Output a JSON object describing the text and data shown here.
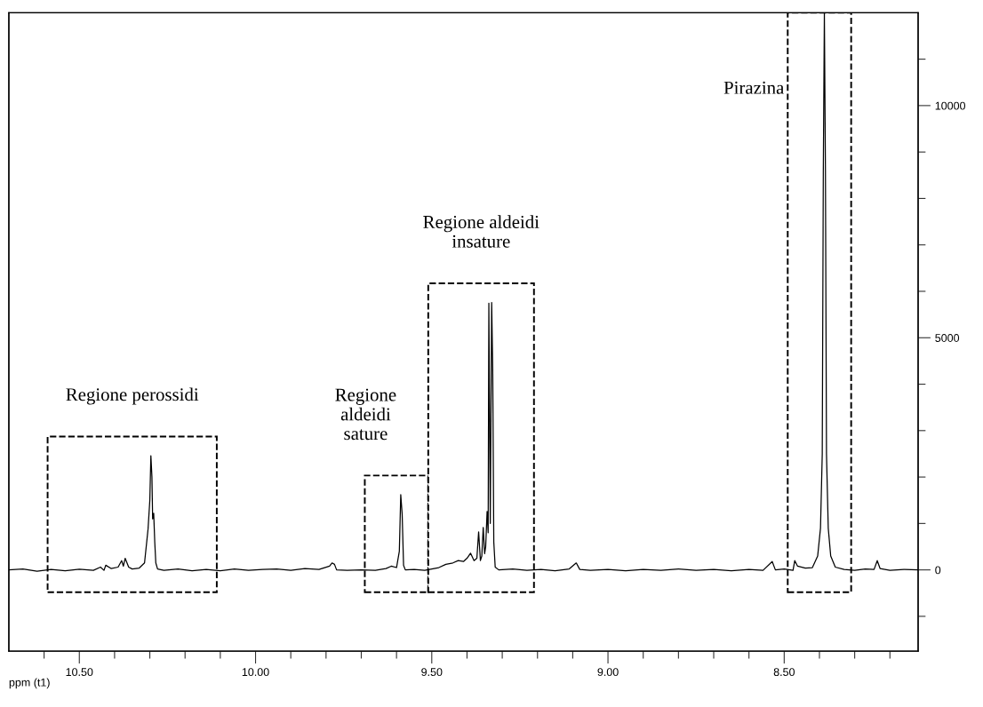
{
  "chart_data": {
    "type": "line",
    "xlabel": "ppm (t1)",
    "xlim": [
      10.7,
      8.12
    ],
    "xticks": [
      {
        "value": 10.6,
        "label": null
      },
      {
        "value": 10.5,
        "label": "10.50"
      },
      {
        "value": 10.4,
        "label": null
      },
      {
        "value": 10.3,
        "label": null
      },
      {
        "value": 10.2,
        "label": null
      },
      {
        "value": 10.1,
        "label": null
      },
      {
        "value": 10.0,
        "label": "10.00"
      },
      {
        "value": 9.9,
        "label": null
      },
      {
        "value": 9.8,
        "label": null
      },
      {
        "value": 9.7,
        "label": null
      },
      {
        "value": 9.6,
        "label": null
      },
      {
        "value": 9.5,
        "label": "9.50"
      },
      {
        "value": 9.4,
        "label": null
      },
      {
        "value": 9.3,
        "label": null
      },
      {
        "value": 9.2,
        "label": null
      },
      {
        "value": 9.1,
        "label": null
      },
      {
        "value": 9.0,
        "label": "9.00"
      },
      {
        "value": 8.9,
        "label": null
      },
      {
        "value": 8.8,
        "label": null
      },
      {
        "value": 8.7,
        "label": null
      },
      {
        "value": 8.6,
        "label": null
      },
      {
        "value": 8.5,
        "label": "8.50"
      },
      {
        "value": 8.4,
        "label": null
      },
      {
        "value": 8.3,
        "label": null
      },
      {
        "value": 8.2,
        "label": null
      }
    ],
    "ylim": [
      -1750,
      12000
    ],
    "yticks": [
      {
        "value": -1000,
        "label": null
      },
      0,
      {
        "value": 1000,
        "label": null
      },
      {
        "value": 2000,
        "label": null
      },
      {
        "value": 3000,
        "label": null
      },
      {
        "value": 4000,
        "label": null
      },
      5000,
      {
        "value": 6000,
        "label": null
      },
      {
        "value": 7000,
        "label": null
      },
      {
        "value": 8000,
        "label": null
      },
      {
        "value": 9000,
        "label": null
      },
      10000,
      {
        "value": 11000,
        "label": null
      }
    ],
    "grid": false,
    "legend": false,
    "marker": "none",
    "line_style": "solid",
    "series": [
      {
        "color": "#000000",
        "x": [
          10.7,
          10.66,
          10.62,
          10.58,
          10.54,
          10.5,
          10.46,
          10.44,
          10.43,
          10.425,
          10.41,
          10.39,
          10.38,
          10.375,
          10.37,
          10.36,
          10.35,
          10.33,
          10.315,
          10.305,
          10.3,
          10.297,
          10.294,
          10.292,
          10.289,
          10.286,
          10.283,
          10.278,
          10.26,
          10.22,
          10.18,
          10.14,
          10.1,
          10.06,
          10.02,
          9.98,
          9.94,
          9.9,
          9.86,
          9.82,
          9.79,
          9.783,
          9.776,
          9.77,
          9.74,
          9.7,
          9.66,
          9.63,
          9.615,
          9.6,
          9.592,
          9.588,
          9.584,
          9.58,
          9.575,
          9.55,
          9.52,
          9.5,
          9.48,
          9.46,
          9.44,
          9.425,
          9.41,
          9.4,
          9.39,
          9.38,
          9.372,
          9.367,
          9.362,
          9.358,
          9.354,
          9.35,
          9.347,
          9.343,
          9.34,
          9.338,
          9.334,
          9.33,
          9.327,
          9.324,
          9.32,
          9.31,
          9.27,
          9.23,
          9.19,
          9.15,
          9.11,
          9.09,
          9.08,
          9.05,
          9.0,
          8.95,
          8.9,
          8.85,
          8.8,
          8.75,
          8.7,
          8.65,
          8.6,
          8.56,
          8.534,
          8.525,
          8.5,
          8.475,
          8.47,
          8.462,
          8.44,
          8.42,
          8.405,
          8.397,
          8.392,
          8.389,
          8.386,
          8.383,
          8.38,
          8.375,
          8.368,
          8.355,
          8.33,
          8.3,
          8.27,
          8.245,
          8.236,
          8.228,
          8.2,
          8.16,
          8.12
        ],
        "values": [
          0,
          20,
          -30,
          10,
          -20,
          15,
          -10,
          60,
          -10,
          100,
          30,
          60,
          200,
          80,
          250,
          60,
          20,
          40,
          150,
          880,
          1500,
          2460,
          2000,
          1100,
          1220,
          600,
          150,
          20,
          -10,
          20,
          -20,
          10,
          -20,
          20,
          -10,
          10,
          20,
          -10,
          30,
          10,
          80,
          150,
          120,
          0,
          -10,
          0,
          -10,
          30,
          80,
          50,
          400,
          1620,
          1200,
          100,
          0,
          10,
          -10,
          20,
          50,
          120,
          150,
          200,
          180,
          250,
          360,
          200,
          250,
          820,
          200,
          300,
          915,
          350,
          500,
          1260,
          800,
          5745,
          1000,
          5760,
          4275,
          600,
          60,
          0,
          20,
          -10,
          10,
          -20,
          20,
          150,
          10,
          -10,
          10,
          -20,
          10,
          -10,
          20,
          -10,
          10,
          -20,
          10,
          -10,
          180,
          0,
          20,
          -10,
          200,
          80,
          40,
          50,
          300,
          900,
          2500,
          8600,
          12000,
          8600,
          2500,
          900,
          300,
          60,
          10,
          -10,
          20,
          10,
          200,
          30,
          -10,
          10,
          0
        ]
      }
    ],
    "bands": [
      {
        "axis": "x",
        "from": 10.59,
        "to": 10.11,
        "color": "#ffffff",
        "label": "Regione perossidi"
      },
      {
        "axis": "x",
        "from": 9.69,
        "to": 9.51,
        "color": "#ffffff",
        "label": "Regione\naldeidi\nsature"
      },
      {
        "axis": "x",
        "from": 9.51,
        "to": 9.21,
        "color": "#ffffff",
        "label": "Regione aldeidi\ninsature"
      },
      {
        "axis": "x",
        "from": 8.49,
        "to": 8.31,
        "color": "#ffffff",
        "label": "Pirazina"
      }
    ]
  }
}
